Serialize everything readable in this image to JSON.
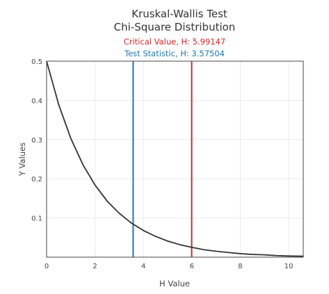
{
  "chart_data": {
    "type": "line",
    "title_line1": "Kruskal-Wallis Test",
    "title_line2": "Chi-Square Distribution",
    "critical_label": "Critical Value, H: 5.99147",
    "statistic_label": "Test Statistic, H: 3.57504",
    "xlabel": "H Value",
    "ylabel": "Y Values",
    "xlim": [
      0,
      10.6
    ],
    "ylim": [
      0,
      0.5
    ],
    "x_ticks": [
      0,
      2,
      4,
      6,
      8,
      10
    ],
    "y_ticks": [
      0.1,
      0.2,
      0.3,
      0.4,
      0.5
    ],
    "grid": true,
    "series": [
      {
        "x": [
          0,
          0.5,
          1,
          1.5,
          2,
          2.5,
          3,
          3.5,
          4,
          4.5,
          5,
          5.5,
          6,
          6.5,
          7,
          7.5,
          8,
          8.5,
          9,
          9.5,
          10,
          10.6
        ],
        "y": [
          0.5,
          0.389,
          0.303,
          0.236,
          0.184,
          0.143,
          0.112,
          0.087,
          0.068,
          0.053,
          0.041,
          0.032,
          0.025,
          0.019,
          0.015,
          0.012,
          0.009,
          0.007,
          0.006,
          0.004,
          0.003,
          0.0025
        ]
      }
    ],
    "vertical_lines": [
      {
        "x": 3.57504,
        "color": "#1f77b4"
      },
      {
        "x": 5.99147,
        "color": "#d62728"
      }
    ],
    "colors": {
      "curve": "#333333",
      "critical": "#d62728",
      "statistic": "#1f77b4"
    }
  }
}
